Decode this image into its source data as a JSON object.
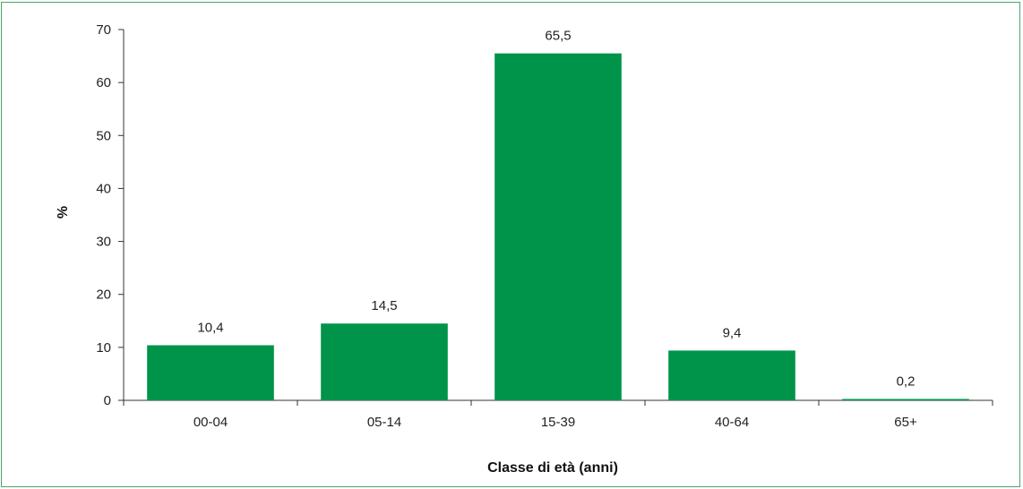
{
  "chart_data": {
    "type": "bar",
    "categories": [
      "00-04",
      "05-14",
      "15-39",
      "40-64",
      "65+"
    ],
    "values": [
      10.4,
      14.5,
      65.5,
      9.4,
      0.2
    ],
    "value_labels": [
      "10,4",
      "14,5",
      "65,5",
      "9,4",
      "0,2"
    ],
    "title": "",
    "xlabel": "Classe di età (anni)",
    "ylabel": "%",
    "ylim": [
      0,
      70
    ],
    "yticks": [
      0,
      10,
      20,
      30,
      40,
      50,
      60,
      70
    ],
    "grid": false,
    "legend": "none",
    "bar_color": "#00944a",
    "frame_color": "#4aa56a"
  }
}
